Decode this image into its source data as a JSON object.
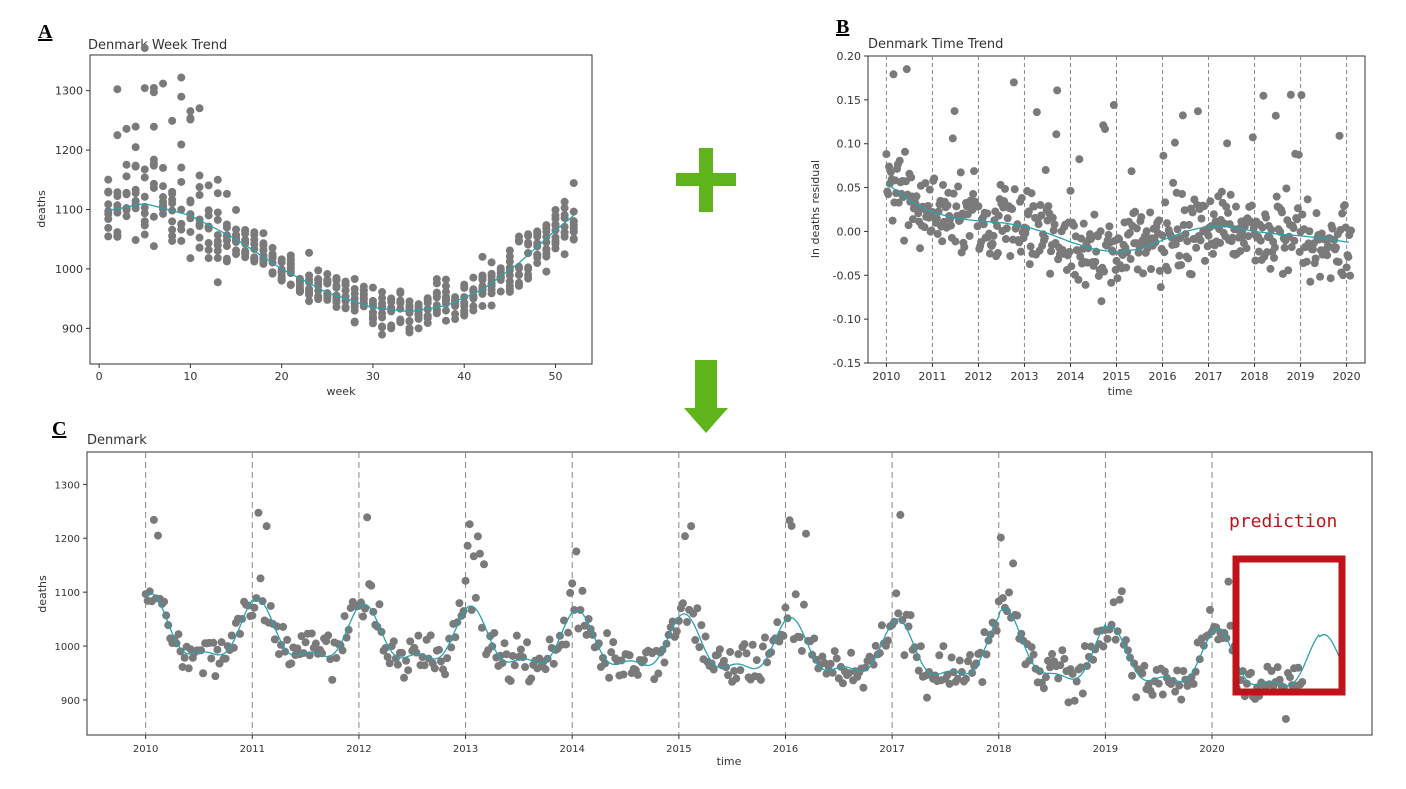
{
  "figure": {
    "panel_letters": [
      "A",
      "B",
      "C"
    ]
  },
  "colors": {
    "points": "#7a7a7a",
    "fit_line": "#2aa1ad",
    "arrow": "#5fb41c",
    "prediction_box": "#c0121a",
    "year_lines": "#888888"
  },
  "chart_data": [
    {
      "id": "A",
      "type": "scatter",
      "title": "Denmark Week Trend",
      "xlabel": "week",
      "ylabel": "deaths",
      "xlim": [
        -1,
        54
      ],
      "ylim": [
        840,
        1360
      ],
      "xticks": [
        0,
        10,
        20,
        30,
        40,
        50
      ],
      "yticks": [
        900,
        1000,
        1100,
        1200,
        1300
      ],
      "trend": {
        "x": [
          1,
          5,
          10,
          15,
          20,
          25,
          30,
          34,
          38,
          42,
          46,
          50,
          52
        ],
        "y": [
          1098,
          1110,
          1090,
          1050,
          1000,
          960,
          935,
          928,
          938,
          965,
          1010,
          1065,
          1090
        ]
      }
    },
    {
      "id": "B",
      "type": "scatter",
      "title": "Denmark Time Trend",
      "xlabel": "time",
      "ylabel": "ln deaths residual",
      "xlim": [
        2009.6,
        2020.4
      ],
      "ylim": [
        -0.15,
        0.2
      ],
      "xticks": [
        "2010",
        "2011",
        "2012",
        "2013",
        "2014",
        "2015",
        "2016",
        "2017",
        "2018",
        "2019",
        "2020"
      ],
      "yticks": [
        "0.20",
        "0.15",
        "0.10",
        "0.05",
        "0.00",
        "-0.05",
        "-0.10",
        "-0.15"
      ],
      "trend": {
        "x": [
          2010.0,
          2010.5,
          2011.0,
          2011.5,
          2012.0,
          2012.5,
          2013.0,
          2013.5,
          2014.0,
          2014.5,
          2015.0,
          2015.5,
          2016.0,
          2016.5,
          2017.0,
          2017.5,
          2018.0,
          2018.5,
          2019.0,
          2019.5,
          2020.0
        ],
        "y": [
          0.055,
          0.035,
          0.022,
          0.015,
          0.012,
          0.01,
          0.006,
          -0.002,
          -0.012,
          -0.02,
          -0.024,
          -0.02,
          -0.01,
          0.0,
          0.006,
          0.005,
          0.0,
          -0.003,
          -0.005,
          -0.008,
          -0.012
        ]
      }
    },
    {
      "id": "C",
      "type": "scatter",
      "title": "Denmark",
      "xlabel": "time",
      "ylabel": "deaths",
      "xlim": [
        2009.45,
        2021.5
      ],
      "ylim": [
        835,
        1360
      ],
      "xticks": [
        "2010",
        "2011",
        "2012",
        "2013",
        "2014",
        "2015",
        "2016",
        "2017",
        "2018",
        "2019",
        "2020"
      ],
      "yticks": [
        900,
        1000,
        1100,
        1200,
        1300
      ],
      "annotation": "prediction",
      "fit_line": "seasonal sinusoid (1-year period) with amplitude varying by year",
      "prediction_region_x": [
        2020.22,
        2021.25
      ]
    }
  ]
}
